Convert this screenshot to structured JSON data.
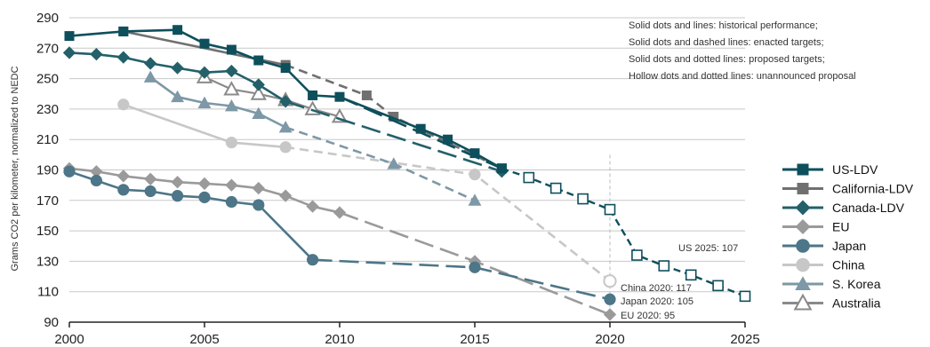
{
  "chart_data": {
    "type": "line",
    "title": "",
    "ylabel": "Grams CO2 per kilometer, normalized to NEDC",
    "xlabel": "",
    "xlim": [
      2000,
      2025
    ],
    "ylim": [
      90,
      290
    ],
    "xticks": [
      "2000",
      "2005",
      "2010",
      "2015",
      "2020",
      "2025"
    ],
    "yticks": [
      "90",
      "110",
      "130",
      "150",
      "170",
      "190",
      "210",
      "230",
      "250",
      "270",
      "290"
    ],
    "notes": [
      "Solid dots and lines: historical performance;",
      "Solid dots and dashed lines: enacted targets;",
      "Solid dots and dotted lines: proposed targets;",
      "Hollow dots and dotted lines: unannounced proposal"
    ],
    "annotations": [
      {
        "text": "US 2025: 107"
      },
      {
        "text": "China 2020: 117"
      },
      {
        "text": "Japan 2020: 105"
      },
      {
        "text": "EU 2020: 95"
      }
    ],
    "legend_position": "right",
    "series": [
      {
        "name": "US-LDV",
        "color": "#0e4f5c",
        "marker": "square",
        "historical": [
          [
            2000,
            278
          ],
          [
            2002,
            281
          ],
          [
            2004,
            282
          ],
          [
            2005,
            273
          ],
          [
            2006,
            269
          ],
          [
            2007,
            262
          ],
          [
            2008,
            257
          ],
          [
            2009,
            239
          ],
          [
            2010,
            238
          ],
          [
            2013,
            217
          ],
          [
            2014,
            210
          ],
          [
            2015,
            201
          ],
          [
            2016,
            191
          ]
        ],
        "enacted": [
          [
            2010,
            238
          ],
          [
            2016,
            191
          ]
        ],
        "targets": [
          [
            2017,
            185
          ],
          [
            2018,
            178
          ],
          [
            2019,
            171
          ],
          [
            2020,
            164
          ],
          [
            2021,
            134
          ],
          [
            2022,
            127
          ],
          [
            2023,
            121
          ],
          [
            2024,
            114
          ],
          [
            2025,
            107
          ]
        ]
      },
      {
        "name": "California-LDV",
        "color": "#707070",
        "marker": "square",
        "historical": [
          [
            2002,
            281
          ],
          [
            2008,
            259
          ]
        ],
        "enacted": [
          [
            2008,
            259
          ],
          [
            2011,
            239
          ],
          [
            2012,
            225
          ],
          [
            2016,
            191
          ]
        ],
        "targets": []
      },
      {
        "name": "Canada-LDV",
        "color": "#23606a",
        "marker": "diamond",
        "historical": [
          [
            2000,
            267
          ],
          [
            2001,
            266
          ],
          [
            2002,
            264
          ],
          [
            2003,
            260
          ],
          [
            2004,
            257
          ],
          [
            2005,
            254
          ],
          [
            2006,
            255
          ],
          [
            2007,
            246
          ],
          [
            2008,
            235
          ]
        ],
        "enacted": [
          [
            2008,
            235
          ],
          [
            2016,
            189
          ]
        ],
        "targets": []
      },
      {
        "name": "EU",
        "color": "#9a9a9a",
        "marker": "diamond",
        "historical": [
          [
            2000,
            191
          ],
          [
            2001,
            189
          ],
          [
            2002,
            186
          ],
          [
            2003,
            184
          ],
          [
            2004,
            182
          ],
          [
            2005,
            181
          ],
          [
            2006,
            180
          ],
          [
            2007,
            178
          ],
          [
            2008,
            173
          ],
          [
            2009,
            166
          ],
          [
            2010,
            162
          ]
        ],
        "enacted": [
          [
            2010,
            162
          ],
          [
            2015,
            130
          ],
          [
            2020,
            95
          ]
        ],
        "targets": []
      },
      {
        "name": "Japan",
        "color": "#4d7688",
        "marker": "circle",
        "historical": [
          [
            2000,
            189
          ],
          [
            2001,
            183
          ],
          [
            2002,
            177
          ],
          [
            2003,
            176
          ],
          [
            2004,
            173
          ],
          [
            2005,
            172
          ],
          [
            2006,
            169
          ],
          [
            2007,
            167
          ],
          [
            2009,
            131
          ]
        ],
        "enacted": [
          [
            2009,
            131
          ],
          [
            2015,
            126
          ],
          [
            2020,
            105
          ]
        ],
        "targets": []
      },
      {
        "name": "China",
        "color": "#c7c7c7",
        "marker": "circle",
        "historical": [
          [
            2002,
            233
          ],
          [
            2006,
            208
          ],
          [
            2008,
            205
          ]
        ],
        "enacted": [
          [
            2008,
            205
          ],
          [
            2015,
            187
          ],
          [
            2020,
            117
          ]
        ],
        "targets": []
      },
      {
        "name": "S. Korea",
        "color": "#7d98a6",
        "marker": "triangle",
        "historical": [
          [
            2003,
            251
          ],
          [
            2004,
            238
          ],
          [
            2005,
            234
          ],
          [
            2006,
            232
          ],
          [
            2007,
            227
          ],
          [
            2008,
            218
          ]
        ],
        "enacted": [
          [
            2008,
            218
          ],
          [
            2012,
            194
          ],
          [
            2015,
            170
          ]
        ],
        "targets": []
      },
      {
        "name": "Australia",
        "color": "#8a8a8a",
        "marker": "hollow-triangle",
        "historical": [
          [
            2005,
            251
          ],
          [
            2006,
            243
          ],
          [
            2007,
            240
          ],
          [
            2008,
            236
          ],
          [
            2009,
            230
          ],
          [
            2010,
            225
          ]
        ],
        "enacted": [],
        "targets": []
      }
    ]
  }
}
